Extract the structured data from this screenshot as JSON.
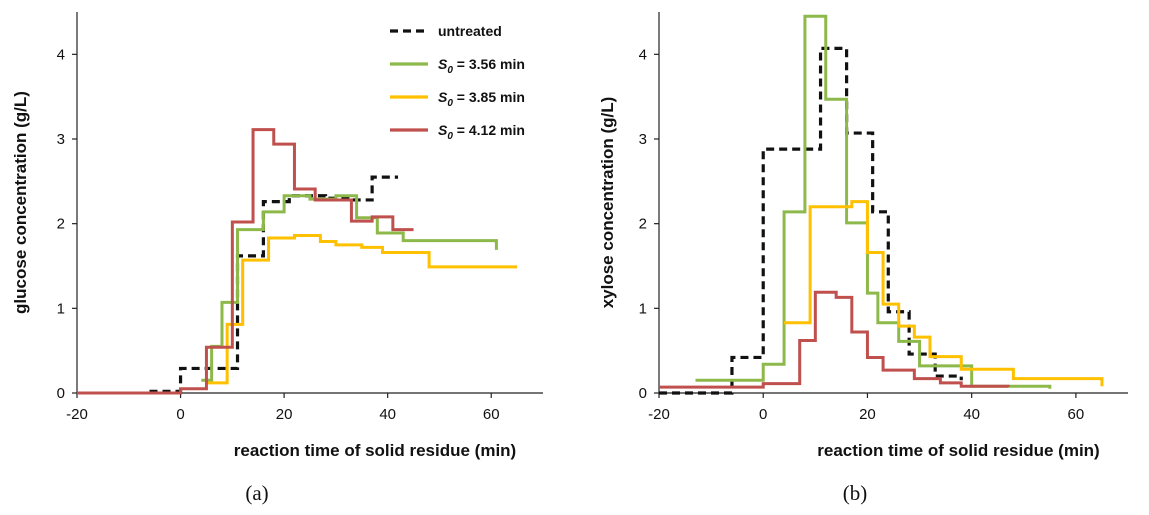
{
  "chart_data": [
    {
      "type": "line",
      "step": true,
      "panel_label": "(a)",
      "xlabel": "reaction time of solid residue  (min)",
      "ylabel": "glucose concentration  (g/L)",
      "xlim": [
        -20,
        70
      ],
      "ylim": [
        0,
        4.5
      ],
      "xticks": [
        -20,
        0,
        20,
        40,
        60
      ],
      "yticks": [
        0,
        1,
        2,
        3,
        4
      ],
      "grid": false,
      "legend_position": "top-right",
      "legend": [
        {
          "key": "untreated",
          "prefix": "",
          "sub": "",
          "suffix": "untreated"
        },
        {
          "key": "s356",
          "prefix": "S",
          "sub": "0",
          "suffix": " = 3.56 min"
        },
        {
          "key": "s385",
          "prefix": "S",
          "sub": "0",
          "suffix": " = 3.85 min"
        },
        {
          "key": "s412",
          "prefix": "S",
          "sub": "0",
          "suffix": " = 4.12 min"
        }
      ],
      "series": [
        {
          "key": "untreated",
          "color": "#111111",
          "dashed": true,
          "x": [
            -6,
            0,
            6,
            11,
            16,
            21,
            28,
            33,
            37,
            42
          ],
          "y": [
            0.02,
            0.29,
            0.29,
            1.62,
            2.26,
            2.33,
            2.3,
            2.28,
            2.55,
            2.55
          ]
        },
        {
          "key": "s356",
          "color": "#8DB94A",
          "dashed": false,
          "x": [
            4,
            6,
            8,
            11,
            16,
            20,
            25,
            30,
            34,
            38,
            43,
            61
          ],
          "y": [
            0.15,
            0.55,
            1.07,
            1.93,
            2.14,
            2.33,
            2.29,
            2.33,
            2.07,
            1.89,
            1.8,
            1.69
          ]
        },
        {
          "key": "s385",
          "color": "#FFC000",
          "dashed": false,
          "x": [
            5,
            9,
            12,
            17,
            22,
            27,
            30,
            35,
            39,
            48,
            65
          ],
          "y": [
            0.12,
            0.81,
            1.57,
            1.83,
            1.86,
            1.79,
            1.75,
            1.72,
            1.66,
            1.49,
            1.49
          ]
        },
        {
          "key": "s412",
          "color": "#C0504D",
          "dashed": false,
          "x": [
            -20,
            0,
            5,
            10,
            14,
            18,
            22,
            26,
            33,
            37,
            41,
            45
          ],
          "y": [
            0.0,
            0.05,
            0.54,
            2.02,
            3.11,
            2.94,
            2.41,
            2.28,
            2.03,
            2.08,
            1.93,
            1.93
          ]
        }
      ]
    },
    {
      "type": "line",
      "step": true,
      "panel_label": "(b)",
      "xlabel": "reaction time of solid residue  (min)",
      "ylabel": "xylose concentration  (g/L)",
      "xlim": [
        -20,
        70
      ],
      "ylim": [
        0,
        4.5
      ],
      "xticks": [
        -20,
        0,
        20,
        40,
        60
      ],
      "yticks": [
        0,
        1,
        2,
        3,
        4
      ],
      "grid": false,
      "series": [
        {
          "key": "untreated",
          "color": "#111111",
          "dashed": true,
          "x": [
            -20,
            -6,
            0,
            11,
            16,
            21,
            24,
            28,
            33,
            38
          ],
          "y": [
            0.0,
            0.42,
            2.88,
            4.07,
            3.07,
            2.14,
            0.96,
            0.46,
            0.2,
            0.15
          ]
        },
        {
          "key": "s356",
          "color": "#8DB94A",
          "dashed": false,
          "x": [
            -13,
            0,
            4,
            8,
            12,
            16,
            20,
            22,
            26,
            30,
            40,
            55
          ],
          "y": [
            0.15,
            0.34,
            2.14,
            4.45,
            3.47,
            2.01,
            1.18,
            0.83,
            0.61,
            0.32,
            0.08,
            0.05
          ]
        },
        {
          "key": "s385",
          "color": "#FFC000",
          "dashed": false,
          "x": [
            4,
            9,
            17,
            20,
            23,
            26,
            29,
            32,
            38,
            48,
            65
          ],
          "y": [
            0.83,
            2.2,
            2.26,
            1.66,
            1.05,
            0.79,
            0.66,
            0.43,
            0.28,
            0.17,
            0.08
          ]
        },
        {
          "key": "s412",
          "color": "#C0504D",
          "dashed": false,
          "x": [
            -20,
            0,
            7,
            10,
            14,
            17,
            20,
            23,
            29,
            34,
            38,
            47
          ],
          "y": [
            0.07,
            0.11,
            0.62,
            1.19,
            1.13,
            0.72,
            0.42,
            0.27,
            0.17,
            0.12,
            0.08,
            0.07
          ]
        }
      ]
    }
  ]
}
